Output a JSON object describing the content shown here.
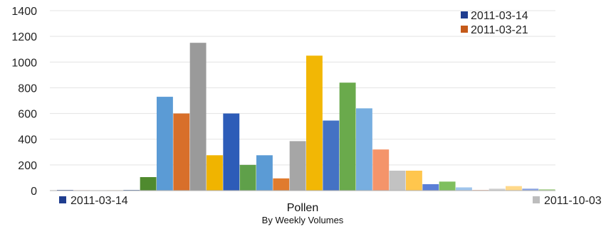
{
  "chart_data": {
    "type": "bar",
    "xlabel": "Pollen",
    "subtitle": "By Weekly Volumes",
    "ylabel": "",
    "ylim": [
      0,
      1400
    ],
    "yticks": [
      0,
      200,
      400,
      600,
      800,
      1000,
      1200,
      1400
    ],
    "grid": true,
    "legend": {
      "top_right": [
        {
          "label": "2011-03-14",
          "color": "#1f3d8f"
        },
        {
          "label": "2011-03-21",
          "color": "#c55a1a"
        }
      ],
      "bottom_left": {
        "label": "2011-03-14",
        "color": "#1f3d8f"
      },
      "bottom_right": {
        "label": "2011-10-03",
        "color": "#bdbdbd"
      }
    },
    "bars": [
      {
        "value": 5,
        "color": "#1f3d8f"
      },
      {
        "value": 3,
        "color": "#c55a1a"
      },
      {
        "value": 2,
        "color": "#9e9e9e"
      },
      {
        "value": 3,
        "color": "#e0a800"
      },
      {
        "value": 5,
        "color": "#2f5597"
      },
      {
        "value": 105,
        "color": "#4f8a2e"
      },
      {
        "value": 730,
        "color": "#5b9bd5"
      },
      {
        "value": 600,
        "color": "#d86f2a"
      },
      {
        "value": 1150,
        "color": "#9a9a9a"
      },
      {
        "value": 275,
        "color": "#f0b400"
      },
      {
        "value": 600,
        "color": "#2d5cb8"
      },
      {
        "value": 200,
        "color": "#5fa04a"
      },
      {
        "value": 275,
        "color": "#5b9bd5"
      },
      {
        "value": 95,
        "color": "#e07b2e"
      },
      {
        "value": 385,
        "color": "#a6a6a6"
      },
      {
        "value": 1050,
        "color": "#f2b705"
      },
      {
        "value": 545,
        "color": "#4472c4"
      },
      {
        "value": 840,
        "color": "#6aaa4c"
      },
      {
        "value": 640,
        "color": "#77aee0"
      },
      {
        "value": 320,
        "color": "#f4946a"
      },
      {
        "value": 155,
        "color": "#c2c2c2"
      },
      {
        "value": 155,
        "color": "#ffc64d"
      },
      {
        "value": 50,
        "color": "#5b7fd6"
      },
      {
        "value": 70,
        "color": "#7fbf5f"
      },
      {
        "value": 25,
        "color": "#9fc5ec"
      },
      {
        "value": 5,
        "color": "#f7b49a"
      },
      {
        "value": 15,
        "color": "#d0d0d0"
      },
      {
        "value": 35,
        "color": "#ffd98a"
      },
      {
        "value": 15,
        "color": "#8aa3e2"
      },
      {
        "value": 10,
        "color": "#a7d38d"
      }
    ]
  }
}
